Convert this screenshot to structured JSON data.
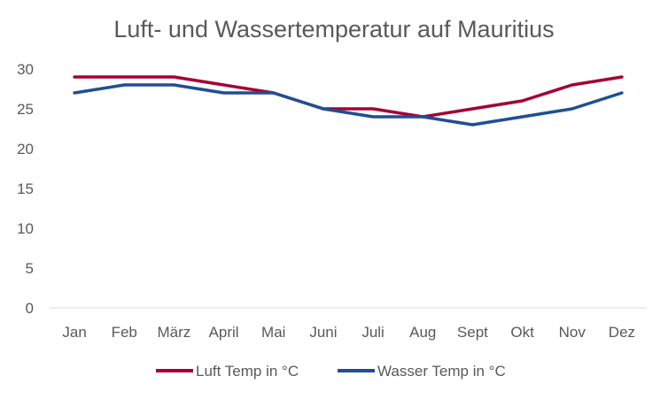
{
  "chart_data": {
    "type": "line",
    "title": "Luft- und Wassertemperatur auf Mauritius",
    "categories": [
      "Jan",
      "Feb",
      "März",
      "April",
      "Mai",
      "Juni",
      "Juli",
      "Aug",
      "Sept",
      "Okt",
      "Nov",
      "Dez"
    ],
    "series": [
      {
        "name": "Luft Temp in °C",
        "color": "#A50034",
        "values": [
          29,
          29,
          29,
          28,
          27,
          25,
          25,
          24,
          25,
          26,
          28,
          29
        ]
      },
      {
        "name": "Wasser Temp in °C",
        "color": "#1F4E96",
        "values": [
          27,
          28,
          28,
          27,
          27,
          25,
          24,
          24,
          23,
          24,
          25,
          27
        ]
      }
    ],
    "ylim": [
      0,
      30
    ],
    "yticks": [
      "0",
      "5",
      "10",
      "15",
      "20",
      "25",
      "30"
    ],
    "grid": false,
    "legend": "bottom"
  }
}
